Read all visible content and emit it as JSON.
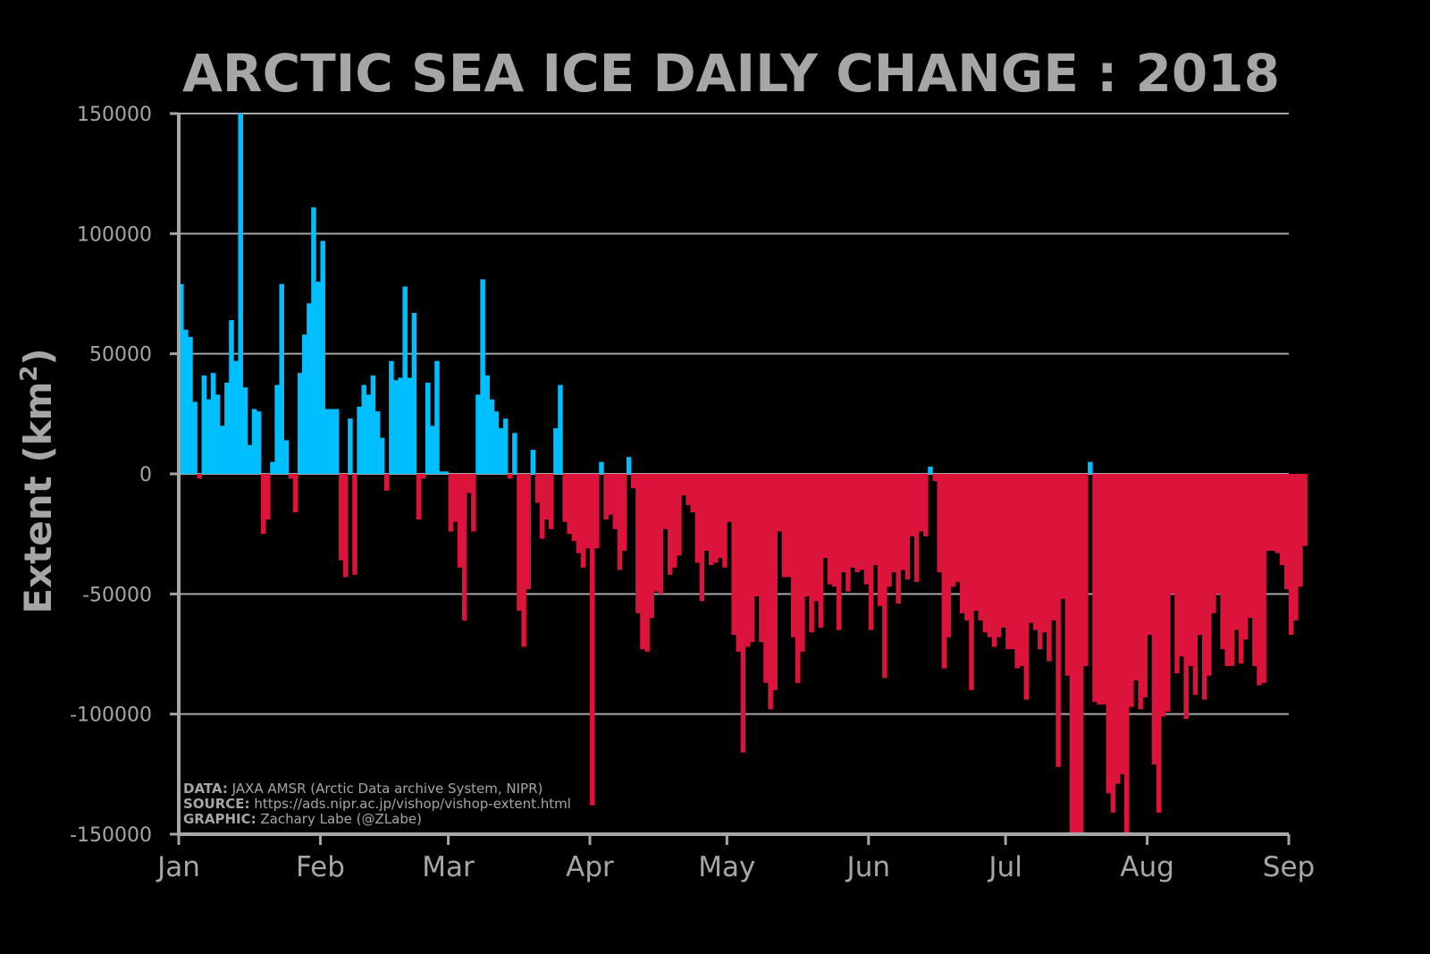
{
  "colors": {
    "background": "#000000",
    "text": "#a6a6a6",
    "gain": "#00bfff",
    "loss": "#dc143c",
    "grid": "#a6a6a6"
  },
  "chart_data": {
    "type": "bar",
    "title": "ARCTIC SEA ICE DAILY CHANGE : 2018",
    "xlabel": "",
    "ylabel": "Extent (km",
    "ylabel_superscript": "2",
    "ylabel_close": ")",
    "ylim": [
      -150000,
      150000
    ],
    "yticks": [
      150000,
      100000,
      50000,
      0,
      -50000,
      -100000,
      -150000
    ],
    "ytick_labels": [
      "150000",
      "100000",
      "50000",
      "0",
      "-50000",
      "-100000",
      "-150000"
    ],
    "x_unit": "day of year",
    "xlim": [
      1,
      243
    ],
    "month_ticks": [
      1,
      32,
      60,
      91,
      121,
      152,
      182,
      213,
      244
    ],
    "month_labels": [
      "Jan",
      "Feb",
      "Mar",
      "Apr",
      "May",
      "Jun",
      "Jul",
      "Aug",
      "Sep"
    ],
    "grid": true,
    "day_start": 1,
    "values": [
      79000,
      60000,
      57000,
      30000,
      -2000,
      41000,
      31000,
      42000,
      33000,
      20000,
      38000,
      64000,
      47000,
      150000,
      36000,
      12000,
      27000,
      26000,
      -25000,
      -19000,
      5000,
      37000,
      79000,
      14000,
      -2000,
      -16000,
      42000,
      58000,
      71000,
      111000,
      80000,
      97000,
      27000,
      27000,
      27000,
      -36000,
      -43000,
      23000,
      -42000,
      28000,
      37000,
      33000,
      41000,
      26000,
      15000,
      -7000,
      47000,
      39000,
      40000,
      78000,
      40000,
      67000,
      -19000,
      -2000,
      38000,
      20000,
      47000,
      1000,
      1000,
      -24000,
      -20000,
      -39000,
      -61000,
      -8000,
      -24000,
      33000,
      81000,
      41000,
      31000,
      26000,
      19000,
      23000,
      -2000,
      17000,
      -57000,
      -72000,
      -48000,
      10000,
      -12000,
      -27000,
      -19000,
      -23000,
      19000,
      37000,
      -20000,
      -25000,
      -28000,
      -33000,
      -39000,
      -31000,
      -138000,
      -31000,
      5000,
      -19000,
      -17000,
      -23000,
      -40000,
      -32000,
      7000,
      -6000,
      -58000,
      -73000,
      -74000,
      -60000,
      -49000,
      -50000,
      -23000,
      -42000,
      -39000,
      -34000,
      -9000,
      -13000,
      -16000,
      -37000,
      -53000,
      -32000,
      -38000,
      -37000,
      -35000,
      -39000,
      -20000,
      -67000,
      -74000,
      -116000,
      -72000,
      -70000,
      -51000,
      -70000,
      -87000,
      -98000,
      -90000,
      -24000,
      -43000,
      -43000,
      -68000,
      -87000,
      -74000,
      -51000,
      -66000,
      -53000,
      -64000,
      -35000,
      -46000,
      -47000,
      -65000,
      -41000,
      -49000,
      -39000,
      -41000,
      -40000,
      -46000,
      -65000,
      -38000,
      -55000,
      -85000,
      -47000,
      -41000,
      -54000,
      -40000,
      -44000,
      -26000,
      -45000,
      -24000,
      -26000,
      3000,
      -3000,
      -41000,
      -81000,
      -68000,
      -47000,
      -45000,
      -58000,
      -61000,
      -90000,
      -57000,
      -61000,
      -66000,
      -68000,
      -72000,
      -68000,
      -64000,
      -73000,
      -73000,
      -81000,
      -80000,
      -94000,
      -62000,
      -65000,
      -73000,
      -66000,
      -78000,
      -61000,
      -122000,
      -52000,
      -84000,
      -150000,
      -150000,
      -150000,
      -80000,
      5000,
      -95000,
      -96000,
      -96000,
      -133000,
      -141000,
      -129000,
      -125000,
      -150000,
      -97000,
      -86000,
      -98000,
      -93000,
      -67000,
      -121000,
      -141000,
      -101000,
      -99000,
      -50000,
      -83000,
      -76000,
      -102000,
      -80000,
      -92000,
      -67000,
      -94000,
      -84000,
      -58000,
      -50000,
      -73000,
      -80000,
      -80000,
      -65000,
      -79000,
      -69000,
      -60000,
      -80000,
      -88000,
      -87000,
      -32000,
      -32000,
      -33000,
      -38000,
      -48000,
      -67000,
      -61000,
      -47000,
      -30000
    ]
  },
  "credits": [
    {
      "key": "DATA:",
      "text": " JAXA AMSR (Arctic Data archive System, NIPR)"
    },
    {
      "key": "SOURCE:",
      "text": " https://ads.nipr.ac.jp/vishop/vishop-extent.html"
    },
    {
      "key": "GRAPHIC:",
      "text": " Zachary Labe (@ZLabe)"
    }
  ]
}
